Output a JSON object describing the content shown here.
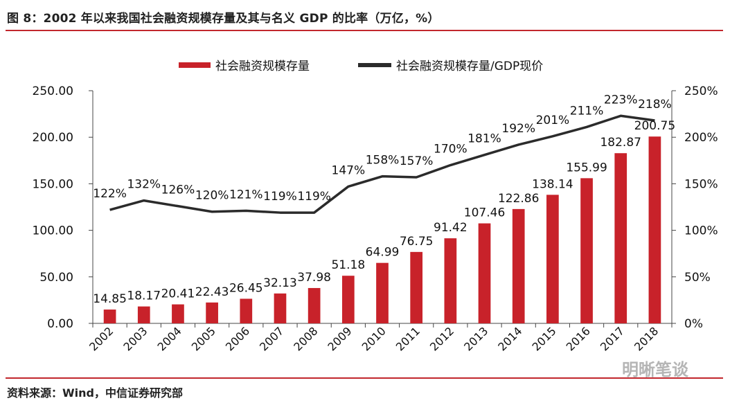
{
  "figure": {
    "title": "图 8：2002 年以来我国社会融资规模存量及其与名义 GDP 的比率（万亿，%）",
    "source": "资料来源：Wind，中信证券研究部",
    "watermark": "明晰笔谈",
    "colors": {
      "accent_rule": "#c2272d",
      "bar": "#c8222a",
      "line": "#2b2b2b"
    }
  },
  "chart_data": {
    "type": "bar",
    "categories": [
      "2002",
      "2003",
      "2004",
      "2005",
      "2006",
      "2007",
      "2008",
      "2009",
      "2010",
      "2011",
      "2012",
      "2013",
      "2014",
      "2015",
      "2016",
      "2017",
      "2018"
    ],
    "series": [
      {
        "name": "社会融资规模存量",
        "type": "bar",
        "axis": "left",
        "values": [
          14.85,
          18.17,
          20.41,
          22.43,
          26.45,
          32.13,
          37.98,
          51.18,
          64.99,
          76.75,
          91.42,
          107.46,
          122.86,
          138.14,
          155.99,
          182.87,
          200.75
        ],
        "labels": [
          "14.85",
          "18.17",
          "20.41",
          "22.43",
          "26.45",
          "32.13",
          "37.98",
          "51.18",
          "64.99",
          "76.75",
          "91.42",
          "107.46",
          "122.86",
          "138.14",
          "155.99",
          "182.87",
          "200.75"
        ]
      },
      {
        "name": "社会融资规模存量/GDP现价",
        "type": "line",
        "axis": "right",
        "values": [
          122,
          132,
          126,
          120,
          121,
          119,
          119,
          147,
          158,
          157,
          170,
          181,
          192,
          201,
          211,
          223,
          218
        ],
        "labels": [
          "122%",
          "132%",
          "126%",
          "120%",
          "121%",
          "119%",
          "119%",
          "147%",
          "158%",
          "157%",
          "170%",
          "181%",
          "192%",
          "201%",
          "211%",
          "223%",
          "218%"
        ]
      }
    ],
    "y_left": {
      "range": [
        0,
        250
      ],
      "ticks": [
        "0.00",
        "50.00",
        "100.00",
        "150.00",
        "200.00",
        "250.00"
      ]
    },
    "y_right": {
      "range": [
        0,
        250
      ],
      "ticks": [
        "0%",
        "50%",
        "100%",
        "150%",
        "200%",
        "250%"
      ]
    },
    "legend_position": "top",
    "grid": false
  }
}
